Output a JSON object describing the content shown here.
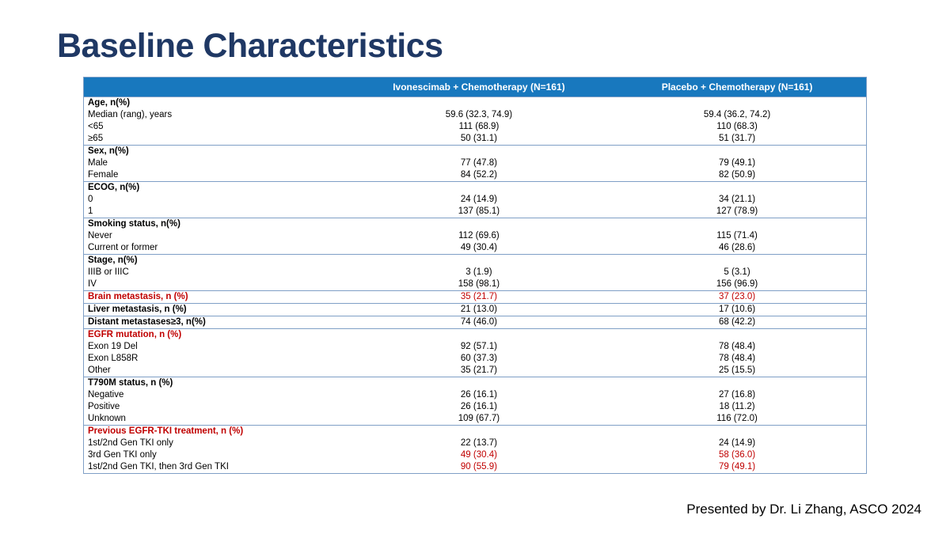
{
  "slide": {
    "title": "Baseline Characteristics",
    "footer": "Presented by Dr. Li Zhang, ASCO 2024"
  },
  "colors": {
    "title": "#1F3864",
    "header_bg": "#1878BE",
    "highlight_red": "#C00000",
    "border_blue": "#7F9FC6"
  },
  "table": {
    "columns": [
      "",
      "Ivonescimab + Chemotherapy (N=161)",
      "Placebo + Chemotherapy (N=161)"
    ],
    "rows": [
      {
        "label": "Age, n(%)",
        "v1": "",
        "v2": "",
        "bold": true,
        "section_start": true
      },
      {
        "label": "Median (rang), years",
        "v1": "59.6 (32.3, 74.9)",
        "v2": "59.4 (36.2, 74.2)",
        "indent": true
      },
      {
        "label": "<65",
        "v1": "111 (68.9)",
        "v2": "110 (68.3)",
        "indent": true
      },
      {
        "label": "≥65",
        "v1": "50 (31.1)",
        "v2": "51 (31.7)",
        "indent": true
      },
      {
        "label": "Sex, n(%)",
        "v1": "",
        "v2": "",
        "bold": true,
        "section_start": true
      },
      {
        "label": "Male",
        "v1": "77 (47.8)",
        "v2": "79 (49.1)",
        "indent": true
      },
      {
        "label": "Female",
        "v1": "84 (52.2)",
        "v2": "82 (50.9)",
        "indent": true
      },
      {
        "label": "ECOG, n(%)",
        "v1": "",
        "v2": "",
        "bold": true,
        "section_start": true
      },
      {
        "label": "0",
        "v1": "24 (14.9)",
        "v2": "34 (21.1)",
        "indent": true
      },
      {
        "label": "1",
        "v1": "137 (85.1)",
        "v2": "127 (78.9)",
        "indent": true
      },
      {
        "label": "Smoking status, n(%)",
        "v1": "",
        "v2": "",
        "bold": true,
        "section_start": true
      },
      {
        "label": "Never",
        "v1": "112 (69.6)",
        "v2": "115 (71.4)",
        "indent": true
      },
      {
        "label": "Current or former",
        "v1": "49 (30.4)",
        "v2": "46 (28.6)",
        "indent": true
      },
      {
        "label": "Stage, n(%)",
        "v1": "",
        "v2": "",
        "bold": true,
        "section_start": true
      },
      {
        "label": "IIIB or IIIC",
        "v1": "3 (1.9)",
        "v2": "5 (3.1)",
        "indent": true
      },
      {
        "label": "IV",
        "v1": "158 (98.1)",
        "v2": "156 (96.9)",
        "indent": true
      },
      {
        "label": "Brain metastasis, n (%)",
        "v1": "35 (21.7)",
        "v2": "37 (23.0)",
        "bold": true,
        "red_label": true,
        "red_values": true,
        "section_start": true
      },
      {
        "label": "Liver metastasis, n (%)",
        "v1": "21 (13.0)",
        "v2": "17 (10.6)",
        "bold": true,
        "section_start": true
      },
      {
        "label": "Distant metastases≥3,  n(%)",
        "v1": "74 (46.0)",
        "v2": "68 (42.2)",
        "bold": true,
        "section_start": true
      },
      {
        "label": "EGFR mutation, n (%)",
        "v1": "",
        "v2": "",
        "bold": true,
        "red_label": true,
        "section_start": true
      },
      {
        "label": "Exon 19 Del",
        "v1": "92 (57.1)",
        "v2": "78 (48.4)",
        "indent": true
      },
      {
        "label": "Exon L858R",
        "v1": "60 (37.3)",
        "v2": "78 (48.4)",
        "indent": true
      },
      {
        "label": "Other",
        "v1": "35 (21.7)",
        "v2": "25 (15.5)",
        "indent": true
      },
      {
        "label": "T790M status, n (%)",
        "v1": "",
        "v2": "",
        "bold": true,
        "section_start": true
      },
      {
        "label": "Negative",
        "v1": "26 (16.1)",
        "v2": "27 (16.8)",
        "indent": true
      },
      {
        "label": "Positive",
        "v1": "26 (16.1)",
        "v2": "18 (11.2)",
        "indent": true
      },
      {
        "label": "Unknown",
        "v1": "109 (67.7)",
        "v2": "116 (72.0)",
        "indent": true
      },
      {
        "label": "Previous EGFR-TKI treatment, n (%)",
        "v1": "",
        "v2": "",
        "bold": true,
        "red_label": true,
        "section_start": true
      },
      {
        "label": "1st/2nd Gen TKI only",
        "v1": "22 (13.7)",
        "v2": "24 (14.9)",
        "indent": true
      },
      {
        "label": "3rd Gen TKI only",
        "v1": "49 (30.4)",
        "v2": "58 (36.0)",
        "indent": true,
        "red_values": true
      },
      {
        "label": "1st/2nd Gen TKI, then 3rd Gen TKI",
        "v1": "90 (55.9)",
        "v2": "79 (49.1)",
        "indent": true,
        "red_values": true
      }
    ]
  }
}
